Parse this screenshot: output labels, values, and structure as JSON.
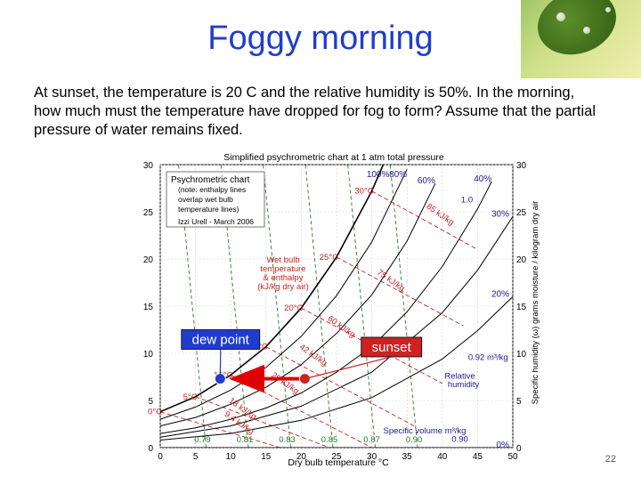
{
  "slide": {
    "title": "Foggy morning",
    "question": "At sunset, the temperature is 20 C and the relative humidity is 50%.  In the morning, how much must the temperature have dropped for fog to form?  Assume that the partial pressure of water remains fixed.",
    "page_number": "22"
  },
  "chart_data": {
    "type": "line",
    "title": "Simplified psychrometric chart at 1 atm total pressure",
    "xlabel": "Dry bulb temperature °C",
    "ylabel": "Specific humidity (ω) grams moisture / kilogram dry air",
    "xlim": [
      0,
      50
    ],
    "ylim": [
      0,
      30
    ],
    "x_ticks": [
      0,
      5,
      10,
      15,
      20,
      25,
      30,
      35,
      40,
      45,
      50
    ],
    "y_ticks": [
      0,
      5,
      10,
      15,
      20,
      25,
      30
    ],
    "info_box": [
      "Psychrometric chart",
      "(note: enthalpy lines",
      "overlap wet bulb",
      "temperature lines)",
      "Izzi Urell - March 2006"
    ],
    "wetbulb_box": [
      "Wet bulb",
      "temperature",
      "& enthalpy",
      "(kJ/kg dry air)"
    ],
    "rh_curves": [
      {
        "label": "100%",
        "x": [
          0,
          5,
          10,
          15,
          20,
          25,
          30,
          32.5
        ],
        "y": [
          3.8,
          5.4,
          7.7,
          10.7,
          14.8,
          20.2,
          27.2,
          31.5
        ]
      },
      {
        "label": "80%",
        "x": [
          0,
          5,
          10,
          15,
          20,
          25,
          30,
          35
        ],
        "y": [
          3.0,
          4.3,
          6.1,
          8.5,
          11.8,
          16.1,
          21.8,
          29.5
        ]
      },
      {
        "label": "60%",
        "x": [
          0,
          5,
          10,
          15,
          20,
          25,
          30,
          35,
          39
        ],
        "y": [
          2.3,
          3.2,
          4.6,
          6.4,
          8.8,
          12.1,
          16.2,
          21.9,
          28.0
        ]
      },
      {
        "label": "40%",
        "x": [
          0,
          5,
          10,
          15,
          20,
          25,
          30,
          35,
          40,
          45,
          47
        ],
        "y": [
          1.5,
          2.1,
          3.0,
          4.2,
          5.8,
          8.0,
          10.7,
          14.4,
          19.2,
          25.3,
          28.2
        ]
      },
      {
        "label": "30%",
        "x": [
          0,
          10,
          20,
          30,
          40,
          45,
          50
        ],
        "y": [
          1.1,
          2.3,
          4.4,
          8.0,
          14.3,
          18.8,
          24.5
        ]
      },
      {
        "label": "20%",
        "x": [
          0,
          10,
          20,
          30,
          40,
          45,
          50
        ],
        "y": [
          0.8,
          1.5,
          2.9,
          5.3,
          9.4,
          12.4,
          16.0
        ]
      },
      {
        "label": "0%",
        "x": [
          0,
          50
        ],
        "y": [
          0,
          0
        ]
      }
    ],
    "wetbulb_lines": [
      {
        "label": "30°C",
        "x": [
          30,
          45
        ],
        "y": [
          27.2,
          21.0
        ]
      },
      {
        "label": "25°C",
        "x": [
          25,
          43
        ],
        "y": [
          20.2,
          12.9
        ]
      },
      {
        "label": "20°C",
        "x": [
          20,
          40
        ],
        "y": [
          14.8,
          6.8
        ]
      },
      {
        "label": "15°C",
        "x": [
          15,
          36
        ],
        "y": [
          10.7,
          2.3
        ]
      },
      {
        "label": "10°C",
        "x": [
          10,
          30
        ],
        "y": [
          7.7,
          0
        ]
      },
      {
        "label": "5°C",
        "x": [
          5,
          24
        ],
        "y": [
          5.4,
          0
        ]
      },
      {
        "label": "0°C",
        "x": [
          0,
          17
        ],
        "y": [
          3.8,
          0
        ]
      }
    ],
    "enthalpy_labels": [
      {
        "label": "85 kJ/kg",
        "x": 39.5,
        "y": 24.5
      },
      {
        "label": "75 kJ/kg",
        "x": 32.5,
        "y": 17.5
      },
      {
        "label": "60 kJ/kg",
        "x": 25.5,
        "y": 12.6
      },
      {
        "label": "42 kJ/kg",
        "x": 21.5,
        "y": 9.6
      },
      {
        "label": "29 kJ/kg",
        "x": 17.5,
        "y": 6.6
      },
      {
        "label": "18 kJ/kg",
        "x": 11.5,
        "y": 3.9
      },
      {
        "label": "9.4 kJ/kg",
        "x": 11.0,
        "y": 2.4
      }
    ],
    "volume_lines": [
      {
        "label": "0.79",
        "x": [
          6.5,
          2.6
        ],
        "y": [
          0,
          30
        ]
      },
      {
        "label": "0.81",
        "x": [
          12.5,
          8.6
        ],
        "y": [
          0,
          30
        ]
      },
      {
        "label": "0.83",
        "x": [
          18.5,
          14.6
        ],
        "y": [
          0,
          30
        ]
      },
      {
        "label": "0.85",
        "x": [
          24.5,
          20.6
        ],
        "y": [
          0,
          30
        ]
      },
      {
        "label": "0.87",
        "x": [
          30.5,
          26.6
        ],
        "y": [
          0,
          30
        ]
      },
      {
        "label": "0.90",
        "x": [
          36.5,
          32.6
        ],
        "y": [
          0,
          30
        ]
      }
    ],
    "side_labels": [
      {
        "text": "1.0",
        "x": 43.5,
        "y": 26.0,
        "color": "#1a1a8c"
      },
      {
        "text": "0.92 m³/kg",
        "x": 46.5,
        "y": 9.3,
        "color": "#1a1a8c"
      },
      {
        "text": "Relative",
        "x": 42.5,
        "y": 7.3,
        "color": "#1a1a8c"
      },
      {
        "text": "humidity",
        "x": 43.0,
        "y": 6.4,
        "color": "#1a1a8c"
      },
      {
        "text": "Specific volume m³/kg",
        "x": 37.5,
        "y": 1.5,
        "color": "#1a1a8c"
      },
      {
        "text": "0.90",
        "x": 42.5,
        "y": 0.6,
        "color": "#1a1a8c"
      }
    ],
    "annotations": [
      {
        "label": "dew point",
        "x": 8.5,
        "y": 7.3,
        "box_x": 3.0,
        "box_y": 12.5
      },
      {
        "label": "sunset",
        "x": 20.5,
        "y": 7.3,
        "box_x": 28.5,
        "box_y": 11.7
      }
    ],
    "arrow": {
      "from": [
        20.5,
        7.3
      ],
      "to": [
        9.5,
        7.3
      ]
    },
    "colors": {
      "grid": "#cfcfcf",
      "rh": "#000000",
      "wetbulb": "#cc2222",
      "volume": "#2a7a2a",
      "accent": "#1f3dcc"
    }
  }
}
